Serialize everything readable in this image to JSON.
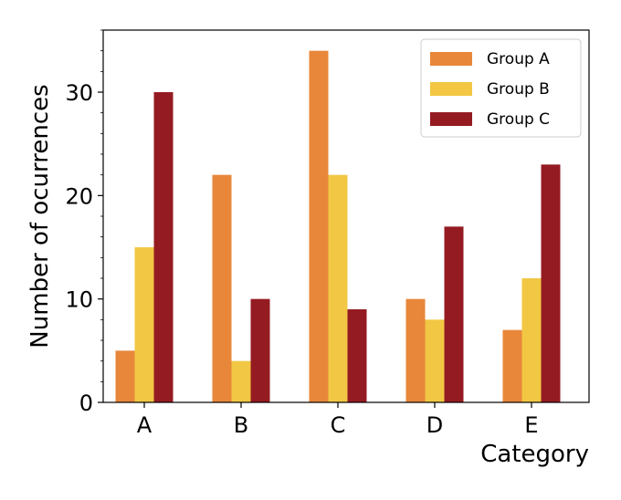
{
  "chart_data": {
    "type": "bar",
    "categories": [
      "A",
      "B",
      "C",
      "D",
      "E"
    ],
    "series": [
      {
        "name": "Group A",
        "values": [
          5,
          22,
          34,
          10,
          7
        ],
        "color": "#E8873A"
      },
      {
        "name": "Group B",
        "values": [
          15,
          4,
          22,
          8,
          12
        ],
        "color": "#F2C744"
      },
      {
        "name": "Group C",
        "values": [
          30,
          10,
          9,
          17,
          23
        ],
        "color": "#951B22"
      }
    ],
    "xlabel": "Category",
    "ylabel": "Number of ocurrences",
    "ylim": [
      0,
      36
    ],
    "yticks": [
      0,
      10,
      20,
      30
    ],
    "grid": false,
    "legend": "top-right"
  }
}
